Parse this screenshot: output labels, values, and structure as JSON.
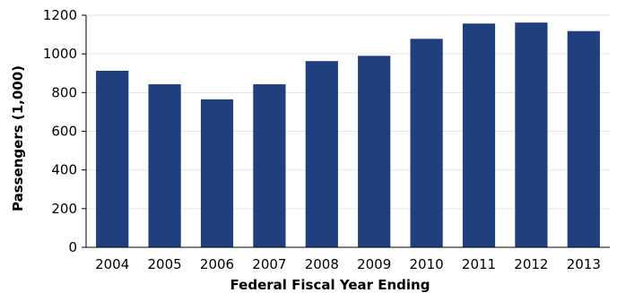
{
  "chart_data": {
    "type": "bar",
    "title": "",
    "xlabel": "Federal Fiscal Year Ending",
    "ylabel": "Passengers (1,000)",
    "categories": [
      "2004",
      "2005",
      "2006",
      "2007",
      "2008",
      "2009",
      "2010",
      "2011",
      "2012",
      "2013"
    ],
    "values": [
      913,
      843,
      765,
      843,
      963,
      990,
      1078,
      1157,
      1162,
      1118
    ],
    "ylim": [
      0,
      1200
    ],
    "yticks": [
      0,
      200,
      400,
      600,
      800,
      1000,
      1200
    ],
    "grid": true,
    "legend": "none",
    "bar_color": "#1f3f7f"
  }
}
